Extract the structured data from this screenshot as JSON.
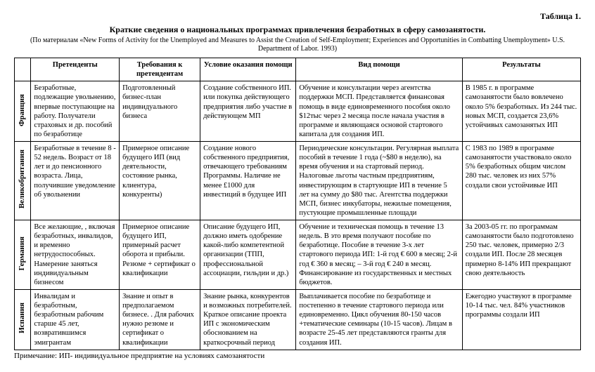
{
  "table_label": "Таблица 1.",
  "title": "Краткие сведения о национальных программах привлечения безработных в сферу самозанятости.",
  "subtitle": "(По материалам «New Forms of Activity for the Unemployed and Measures to Assist the Creation of Self-Employment; Experiences and Opportunities in Combatting Unemployment» U.S. Department of Labor. 1993)",
  "columns": [
    "Претенденты",
    "Требования к претендентам",
    "Условие оказания помощи",
    "Вид помощи",
    "Результаты"
  ],
  "rows": [
    {
      "country": "Франция",
      "cells": [
        "Безработные, подлежащие увольнению, впервые поступающие на работу. Получатели страховых и др. пособий по безработице",
        "Подготовленный бизнес-план индивидуального бизнеса",
        "Создание собственного ИП. или покупка действующего предприятия либо участие в действующем МП",
        "Обучение и консультации через агентства поддержки МСП. Представляется финансовая помощь в виде единовременного пособия около $12тыс через 2 месяца после начала участия в программе и являющаяся основой стартового капитала для создания ИП.",
        "В 1985 г. в программе самозанятости было вовлечено около 5% безработных. Из 244 тыс. новых МСП, создается 23,6% устойчивых самозанятых ИП"
      ]
    },
    {
      "country": "Великобритания",
      "cells": [
        "Безработные в течение 8 - 52 недель. Возраст от 18 лет и до пенсионного возраста. Лица, получившие уведомление об увольнении",
        "Примерное описание будущего ИП (вид деятельности, состояние рынка, клиентура, конкуренты)",
        "Создание нового собственного предприятия, отвечающего требованиям Программы. Наличие не менее £1000 для инвестиций в будущее ИП",
        "Периодические консультации. Регулярная выплата пособий в течение 1 года (~$80 в неделю), на время обучения и на стартовый период. Налоговые льготы частным предприятиям, инвестирующим в стартующие ИП в течение 5 лет на сумму до $80 тыс. Агентства поддержки МСП, бизнес инкубаторы, нежилые помещения, пустующие промышленные площади",
        "С 1983 по 1989 в программе самозанятости участвовало около 5% безработных общим числом 280 тыс. человек из них 57% создали свои устойчивые ИП"
      ]
    },
    {
      "country": "Германия",
      "cells": [
        "Все желающие, , включая безработных, инвалидов, и временно нетрудоспособных. Намерение заняться индивидуальным бизнесом",
        "Примерное описание будущего ИП, примерный расчет оборота и прибыли. Резюме + сертификат о квалификации",
        "Описание будущего ИП, должно иметь одобрение какой-либо компетентной организации (ТПП, профессиональной ассоциации, гильдии и др.)",
        "Обучение и техническая помощь в течение 13 недель. В это время получают пособие по безработице. Пособие в течение 3-х лет стартового периода ИП:\n1-й год € 600 в месяц;\n2-й год € 360 в месяц;\n– 3-й год € 240 в месяц. Финансирование из государственных и местных бюджетов.",
        "За 2003-05 гг. по программам самозанятости было подготовлено 250 тыс. человек, примерно 2/3 создали ИП. После 28 месяцев примерно 8-14% ИП прекращают свою деятельность"
      ]
    },
    {
      "country": "Испания",
      "cells": [
        "Инвалидам и безработным, безработным рабочим старше 45 лет, возвратившимся эмигрантам",
        "Знание и опыт в предполагаемом бизнесе. . Для рабочих нужно резюме и сертификат о квалификации",
        "Знание рынка, конкурентов и возможных потребителей. Краткое описание проекта ИП с экономическим обоснованием на краткосрочный период",
        "Выплачивается пособие по безработице и постепенно в течение стартового периода или единовременно. Цикл обучения 80-150 часов +тематические семинары (10-15 часов). Лицам в возрасте 25-45 лет представляются гранты для создания ИП.",
        "Ежегодно участвуют в программе 10-14 тыс. чел. 84% участников программы создали ИП"
      ]
    }
  ],
  "footnote": "Примечание: ИП- индивидуальное предприятие на условиях самозанятости"
}
